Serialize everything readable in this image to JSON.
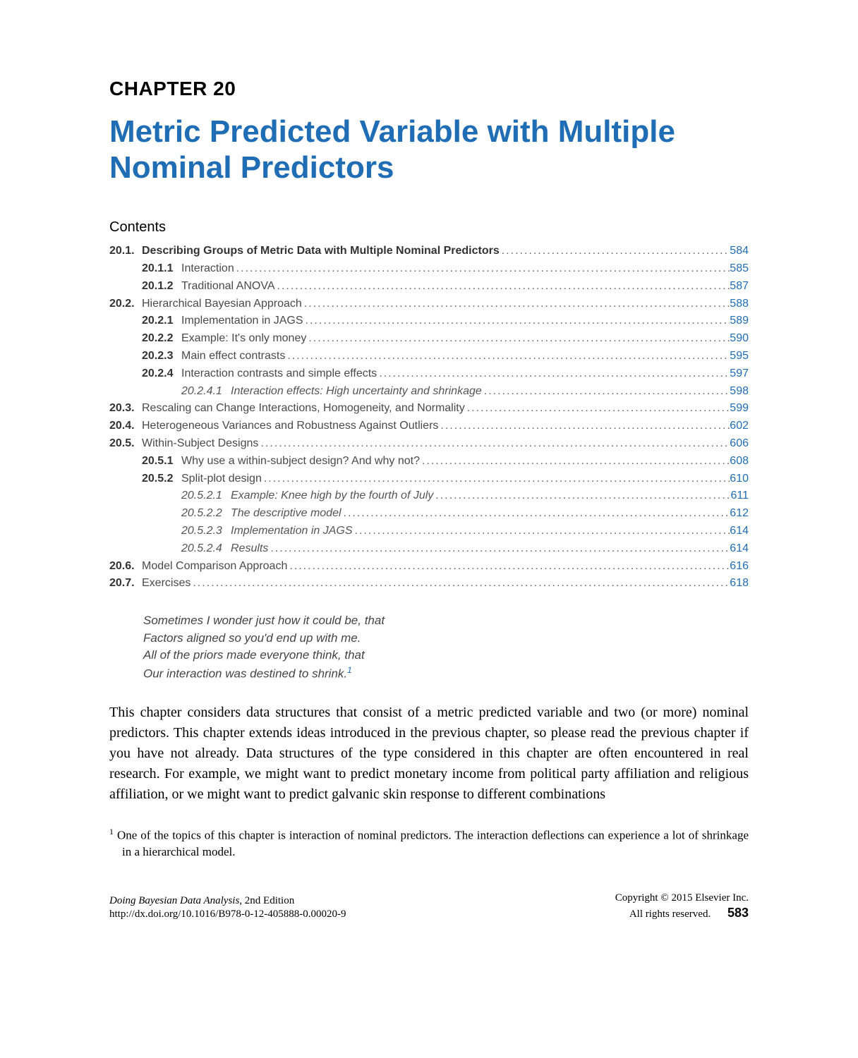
{
  "colors": {
    "title_blue": "#1f6db5",
    "toc_link": "#1f6db5",
    "text_black": "#000000",
    "toc_grey": "#4a4a4a",
    "background": "#ffffff"
  },
  "typography": {
    "chapter_label_fontsize": 28,
    "chapter_title_fontsize": 44,
    "contents_heading_fontsize": 20,
    "toc_fontsize": 16,
    "epigraph_fontsize": 17,
    "body_fontsize": 20,
    "footnote_fontsize": 17,
    "footer_fontsize": 15,
    "pagenum_fontsize": 18
  },
  "chapter": {
    "label": "CHAPTER 20",
    "title": "Metric Predicted Variable with Multiple Nominal Predictors"
  },
  "contents_heading": "Contents",
  "toc": [
    {
      "level": 1,
      "num": "20.1.",
      "title": "Describing Groups of Metric Data with Multiple Nominal Predictors",
      "page": "584",
      "bold": true
    },
    {
      "level": 2,
      "num": "20.1.1",
      "title": "Interaction",
      "page": "585"
    },
    {
      "level": 2,
      "num": "20.1.2",
      "title": "Traditional ANOVA",
      "page": "587"
    },
    {
      "level": 1,
      "num": "20.2.",
      "title": "Hierarchical Bayesian Approach",
      "page": "588"
    },
    {
      "level": 2,
      "num": "20.2.1",
      "title": "Implementation in JAGS",
      "page": "589"
    },
    {
      "level": 2,
      "num": "20.2.2",
      "title": "Example: It's only money",
      "page": "590"
    },
    {
      "level": 2,
      "num": "20.2.3",
      "title": "Main effect contrasts",
      "page": "595"
    },
    {
      "level": 2,
      "num": "20.2.4",
      "title": "Interaction contrasts and simple effects",
      "page": "597"
    },
    {
      "level": 3,
      "num": "20.2.4.1",
      "title": "Interaction effects: High uncertainty and shrinkage",
      "page": "598",
      "italic": true
    },
    {
      "level": 1,
      "num": "20.3.",
      "title": "Rescaling can Change Interactions, Homogeneity, and Normality",
      "page": "599"
    },
    {
      "level": 1,
      "num": "20.4.",
      "title": "Heterogeneous Variances and Robustness Against Outliers",
      "page": "602"
    },
    {
      "level": 1,
      "num": "20.5.",
      "title": "Within-Subject Designs",
      "page": "606"
    },
    {
      "level": 2,
      "num": "20.5.1",
      "title": "Why use a within-subject design? And why not?",
      "page": "608"
    },
    {
      "level": 2,
      "num": "20.5.2",
      "title": "Split-plot design",
      "page": "610"
    },
    {
      "level": 3,
      "num": "20.5.2.1",
      "title": "Example: Knee high by the fourth of July",
      "page": "611",
      "italic": true
    },
    {
      "level": 3,
      "num": "20.5.2.2",
      "title": "The descriptive model",
      "page": "612",
      "italic": true
    },
    {
      "level": 3,
      "num": "20.5.2.3",
      "title": "Implementation in JAGS",
      "page": "614",
      "italic": true
    },
    {
      "level": 3,
      "num": "20.5.2.4",
      "title": "Results",
      "page": "614",
      "italic": true
    },
    {
      "level": 1,
      "num": "20.6.",
      "title": "Model Comparison Approach",
      "page": "616"
    },
    {
      "level": 1,
      "num": "20.7.",
      "title": "Exercises",
      "page": "618"
    }
  ],
  "epigraph": {
    "lines": [
      "Sometimes I wonder just how it could be, that",
      "Factors aligned so you'd end up with me.",
      "All of the priors made everyone think, that",
      "Our interaction was destined to shrink."
    ],
    "footnote_mark": "1"
  },
  "body": {
    "paragraph": "This chapter considers data structures that consist of a metric predicted variable and two (or more) nominal predictors. This chapter extends ideas introduced in the previous chapter, so please read the previous chapter if you have not already. Data structures of the type considered in this chapter are often encountered in real research. For example, we might want to predict monetary income from political party affiliation and religious affiliation, or we might want to predict galvanic skin response to different combinations"
  },
  "footnote": {
    "mark": "1",
    "text": "One of the topics of this chapter is interaction of nominal predictors. The interaction deflections can experience a lot of shrinkage in a hierarchical model."
  },
  "footer": {
    "book_title": "Doing Bayesian Data Analysis",
    "edition": ", 2nd Edition",
    "doi": "http://dx.doi.org/10.1016/B978-0-12-405888-0.00020-9",
    "copyright": "Copyright © 2015 Elsevier Inc.",
    "rights": "All rights reserved.",
    "page_number": "583"
  }
}
